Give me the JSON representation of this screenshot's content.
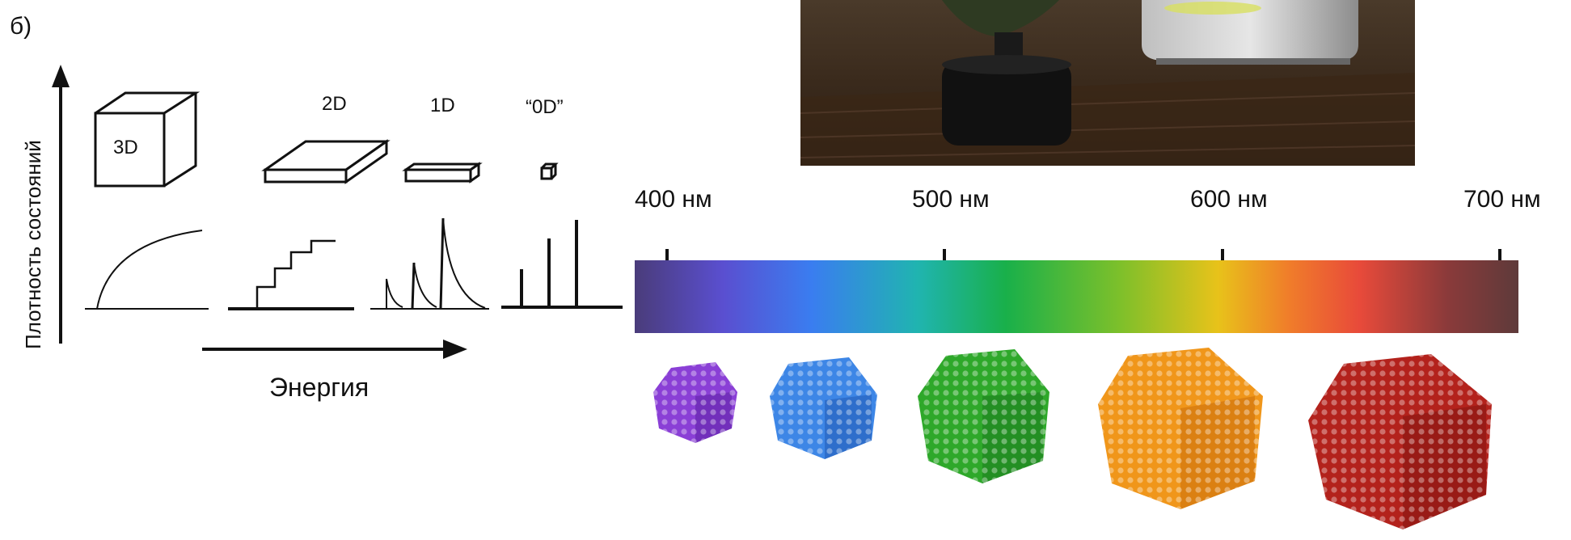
{
  "panel_label": "б)",
  "density": {
    "y_axis_label": "Плотность состояний",
    "x_axis_label": "Энергия",
    "dimensions": [
      {
        "label": "3D"
      },
      {
        "label": "2D"
      },
      {
        "label": "1D"
      },
      {
        "label": "“0D”"
      }
    ]
  },
  "spectrum": {
    "ticks": [
      {
        "label": "400 нм"
      },
      {
        "label": "500 нм"
      },
      {
        "label": "600 нм"
      },
      {
        "label": "700 нм"
      }
    ]
  },
  "nanocrystals": [
    {
      "color": "#8a3fd6",
      "shade": "#5a1fa0"
    },
    {
      "color": "#3d86e6",
      "shade": "#1f55b0"
    },
    {
      "color": "#2ea82a",
      "shade": "#17701a"
    },
    {
      "color": "#f0961a",
      "shade": "#c06608"
    },
    {
      "color": "#b3221c",
      "shade": "#7a1410"
    }
  ],
  "colors": {
    "spectrum_stops": [
      "#4a3c7a",
      "#5a4fd0",
      "#3a7df0",
      "#20b4b0",
      "#19b04a",
      "#7ec02a",
      "#e8c21a",
      "#f07d2a",
      "#e84a3a",
      "#8a3a3a",
      "#5e3a3a"
    ]
  }
}
